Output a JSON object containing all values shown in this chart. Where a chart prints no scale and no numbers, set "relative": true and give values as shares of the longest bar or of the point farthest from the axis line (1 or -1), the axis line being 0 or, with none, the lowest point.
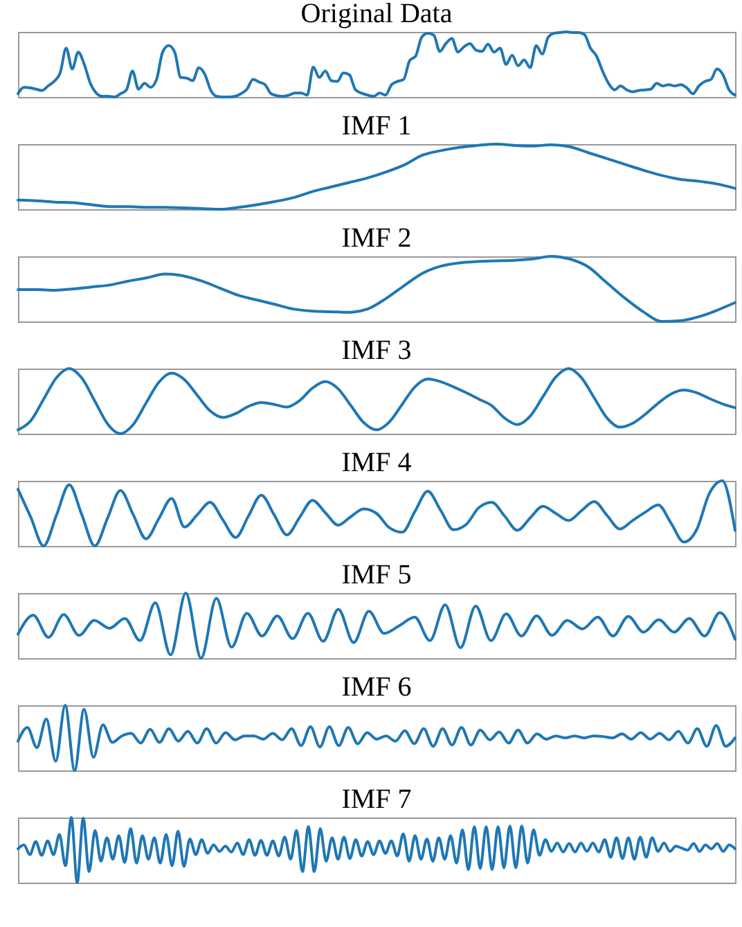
{
  "chart_data": [
    {
      "type": "line",
      "title": "Original Data",
      "relative": true,
      "color": "#1f77b4",
      "categories": [
        null,
        null,
        null,
        null,
        null,
        null,
        null,
        null,
        null,
        null,
        null,
        null,
        null,
        null,
        null,
        null,
        null,
        null,
        null,
        null,
        null,
        null,
        null,
        null,
        null,
        null,
        null,
        null,
        null,
        null,
        null,
        null,
        null,
        null,
        null,
        null,
        null,
        null,
        null,
        null,
        null,
        null,
        null,
        null,
        null,
        null,
        null,
        null,
        null,
        null,
        null,
        null,
        null,
        null,
        null,
        null,
        null,
        null,
        null,
        null,
        null,
        null,
        null,
        null,
        null,
        null,
        null,
        null,
        null,
        null,
        null,
        null,
        null,
        null,
        null,
        null,
        null,
        null,
        null,
        null,
        null,
        null,
        null,
        null,
        null,
        null,
        null,
        null,
        null,
        null,
        null,
        null,
        null,
        null,
        null,
        null,
        null,
        null,
        null,
        null,
        null,
        null,
        null,
        null,
        null,
        null,
        null,
        null,
        null,
        null,
        null,
        null,
        null,
        null,
        null,
        null,
        null,
        null,
        null,
        null
      ],
      "values": [
        0.05,
        0.15,
        0.14,
        0.12,
        0.1,
        0.17,
        0.24,
        0.37,
        0.75,
        0.43,
        0.69,
        0.5,
        0.21,
        0.06,
        0.01,
        0.01,
        0,
        0.05,
        0.11,
        0.4,
        0.12,
        0.21,
        0.15,
        0.27,
        0.69,
        0.79,
        0.69,
        0.3,
        0.29,
        0.25,
        0.45,
        0.35,
        0.1,
        0.01,
        0,
        0,
        0.01,
        0.05,
        0.12,
        0.27,
        0.23,
        0.19,
        0.05,
        0.02,
        0.01,
        0.03,
        0.06,
        0.06,
        0.03,
        0.46,
        0.3,
        0.4,
        0.25,
        0.24,
        0.37,
        0.34,
        0.11,
        0.06,
        0.03,
        0.01,
        0.06,
        0.03,
        0.19,
        0.24,
        0.27,
        0.56,
        0.63,
        0.92,
        0.98,
        0.95,
        0.7,
        0.82,
        0.9,
        0.69,
        0.77,
        0.82,
        0.72,
        0.7,
        0.81,
        0.69,
        0.75,
        0.5,
        0.64,
        0.48,
        0.57,
        0.45,
        0.79,
        0.66,
        0.92,
        0.98,
        0.99,
        1,
        0.99,
        0.99,
        0.96,
        0.75,
        0.63,
        0.4,
        0.21,
        0.11,
        0.17,
        0.11,
        0.08,
        0.1,
        0.11,
        0.12,
        0.21,
        0.17,
        0.19,
        0.17,
        0.19,
        0.14,
        0.05,
        0.17,
        0.24,
        0.27,
        0.43,
        0.34,
        0.11,
        0.03
      ]
    },
    {
      "type": "line",
      "title": "IMF 1",
      "relative": true,
      "color": "#1f77b4",
      "categories": [
        null,
        null,
        null,
        null,
        null,
        null,
        null,
        null,
        null,
        null,
        null,
        null,
        null,
        null,
        null,
        null,
        null,
        null,
        null,
        null,
        null,
        null,
        null,
        null,
        null,
        null,
        null,
        null,
        null,
        null,
        null,
        null,
        null,
        null,
        null,
        null,
        null,
        null,
        null,
        null
      ],
      "values": [
        0.14,
        0.13,
        0.11,
        0.1,
        0.07,
        0.04,
        0.04,
        0.03,
        0.03,
        0.02,
        0.01,
        0,
        0.03,
        0.07,
        0.12,
        0.18,
        0.27,
        0.34,
        0.41,
        0.48,
        0.57,
        0.68,
        0.83,
        0.9,
        0.95,
        0.98,
        1,
        0.98,
        0.97,
        0.99,
        0.96,
        0.87,
        0.78,
        0.69,
        0.6,
        0.52,
        0.46,
        0.43,
        0.39,
        0.32
      ]
    },
    {
      "type": "line",
      "title": "IMF 2",
      "relative": true,
      "color": "#1f77b4",
      "categories": [
        null,
        null,
        null,
        null,
        null,
        null,
        null,
        null,
        null,
        null,
        null,
        null,
        null,
        null,
        null,
        null,
        null,
        null,
        null,
        null,
        null,
        null,
        null,
        null,
        null,
        null,
        null,
        null,
        null,
        null,
        null,
        null,
        null,
        null,
        null,
        null,
        null,
        null,
        null,
        null
      ],
      "values": [
        0.49,
        0.49,
        0.48,
        0.5,
        0.53,
        0.56,
        0.62,
        0.67,
        0.73,
        0.7,
        0.62,
        0.51,
        0.4,
        0.33,
        0.26,
        0.19,
        0.16,
        0.15,
        0.14,
        0.19,
        0.35,
        0.55,
        0.74,
        0.85,
        0.9,
        0.92,
        0.93,
        0.94,
        0.96,
        1,
        0.96,
        0.84,
        0.6,
        0.36,
        0.15,
        0,
        0.01,
        0.07,
        0.17,
        0.29
      ]
    },
    {
      "type": "line",
      "title": "IMF 3",
      "relative": true,
      "color": "#1f77b4",
      "categories": [
        null,
        null,
        null,
        null,
        null,
        null,
        null,
        null,
        null,
        null,
        null,
        null,
        null,
        null,
        null,
        null,
        null,
        null,
        null,
        null,
        null,
        null,
        null,
        null,
        null,
        null,
        null,
        null,
        null,
        null,
        null,
        null,
        null,
        null,
        null,
        null,
        null,
        null,
        null,
        null,
        null,
        null,
        null,
        null,
        null,
        null,
        null,
        null,
        null,
        null,
        null,
        null,
        null,
        null,
        null,
        null,
        null
      ],
      "values": [
        0.06,
        0.2,
        0.53,
        0.86,
        1,
        0.85,
        0.5,
        0.15,
        0,
        0.14,
        0.47,
        0.79,
        0.93,
        0.83,
        0.59,
        0.35,
        0.25,
        0.31,
        0.42,
        0.48,
        0.45,
        0.41,
        0.51,
        0.7,
        0.8,
        0.69,
        0.43,
        0.17,
        0.06,
        0.18,
        0.45,
        0.72,
        0.84,
        0.8,
        0.72,
        0.63,
        0.53,
        0.43,
        0.24,
        0.14,
        0.27,
        0.57,
        0.87,
        1,
        0.86,
        0.55,
        0.24,
        0.1,
        0.16,
        0.3,
        0.47,
        0.61,
        0.67,
        0.63,
        0.54,
        0.46,
        0.4
      ]
    },
    {
      "type": "line",
      "title": "IMF 4",
      "relative": true,
      "color": "#1f77b4",
      "categories": [
        null,
        null,
        null,
        null,
        null,
        null,
        null,
        null,
        null,
        null,
        null,
        null,
        null,
        null,
        null,
        null,
        null,
        null,
        null,
        null,
        null,
        null,
        null,
        null,
        null,
        null,
        null,
        null,
        null,
        null,
        null,
        null,
        null,
        null,
        null,
        null,
        null,
        null,
        null,
        null,
        null,
        null,
        null,
        null,
        null,
        null,
        null,
        null,
        null,
        null,
        null,
        null,
        null,
        null,
        null,
        null,
        null
      ],
      "values": [
        0.87,
        0.44,
        0,
        0.47,
        0.94,
        0.47,
        0,
        0.43,
        0.85,
        0.48,
        0.11,
        0.42,
        0.73,
        0.29,
        0.48,
        0.67,
        0.4,
        0.13,
        0.46,
        0.78,
        0.48,
        0.17,
        0.44,
        0.7,
        0.51,
        0.32,
        0.45,
        0.57,
        0.5,
        0.28,
        0.21,
        0.53,
        0.84,
        0.55,
        0.25,
        0.33,
        0.59,
        0.67,
        0.46,
        0.24,
        0.43,
        0.61,
        0.5,
        0.39,
        0.54,
        0.68,
        0.47,
        0.26,
        0.39,
        0.52,
        0.63,
        0.35,
        0.06,
        0.25,
        0.81,
        1,
        0.24
      ]
    },
    {
      "type": "line",
      "title": "IMF 5",
      "relative": true,
      "color": "#1f77b4",
      "categories": [
        null,
        null,
        null,
        null,
        null,
        null,
        null,
        null,
        null,
        null,
        null,
        null,
        null,
        null,
        null,
        null,
        null,
        null,
        null,
        null,
        null,
        null,
        null,
        null,
        null,
        null,
        null,
        null,
        null,
        null,
        null,
        null,
        null,
        null,
        null,
        null,
        null,
        null,
        null,
        null,
        null,
        null,
        null,
        null,
        null,
        null,
        null,
        null
      ],
      "values": [
        0.37,
        0.66,
        0.32,
        0.67,
        0.35,
        0.58,
        0.46,
        0.61,
        0.27,
        0.85,
        0.05,
        1,
        0,
        0.92,
        0.17,
        0.69,
        0.34,
        0.65,
        0.3,
        0.69,
        0.26,
        0.75,
        0.24,
        0.72,
        0.38,
        0.5,
        0.63,
        0.27,
        0.82,
        0.16,
        0.8,
        0.27,
        0.68,
        0.34,
        0.65,
        0.35,
        0.58,
        0.45,
        0.63,
        0.34,
        0.64,
        0.4,
        0.59,
        0.4,
        0.61,
        0.34,
        0.7,
        0.29
      ]
    },
    {
      "type": "line",
      "title": "IMF 6",
      "relative": true,
      "color": "#1f77b4",
      "categories": [
        null,
        null,
        null,
        null,
        null,
        null,
        null,
        null,
        null,
        null,
        null,
        null,
        null,
        null,
        null,
        null,
        null,
        null,
        null,
        null,
        null,
        null,
        null,
        null,
        null,
        null,
        null,
        null,
        null,
        null,
        null,
        null,
        null,
        null,
        null,
        null,
        null,
        null,
        null,
        null,
        null,
        null,
        null,
        null,
        null,
        null,
        null,
        null,
        null,
        null,
        null,
        null,
        null,
        null,
        null,
        null,
        null,
        null,
        null,
        null,
        null,
        null,
        null,
        null,
        null,
        null,
        null,
        null,
        null,
        null,
        null,
        null,
        null,
        null,
        null,
        null,
        null
      ],
      "values": [
        0.45,
        0.66,
        0.35,
        0.79,
        0.14,
        1,
        0,
        0.94,
        0.2,
        0.7,
        0.43,
        0.53,
        0.57,
        0.42,
        0.63,
        0.43,
        0.64,
        0.45,
        0.6,
        0.42,
        0.64,
        0.42,
        0.58,
        0.47,
        0.53,
        0.53,
        0.48,
        0.57,
        0.47,
        0.64,
        0.38,
        0.67,
        0.36,
        0.67,
        0.38,
        0.66,
        0.41,
        0.58,
        0.48,
        0.53,
        0.45,
        0.61,
        0.41,
        0.64,
        0.37,
        0.64,
        0.39,
        0.66,
        0.39,
        0.62,
        0.47,
        0.59,
        0.42,
        0.62,
        0.42,
        0.56,
        0.48,
        0.53,
        0.5,
        0.53,
        0.5,
        0.53,
        0.52,
        0.5,
        0.56,
        0.48,
        0.58,
        0.48,
        0.57,
        0.47,
        0.6,
        0.42,
        0.64,
        0.37,
        0.69,
        0.37,
        0.5
      ]
    },
    {
      "type": "line",
      "title": "IMF 7",
      "relative": true,
      "color": "#1f77b4",
      "categories": [
        null,
        null,
        null,
        null,
        null,
        null,
        null,
        null,
        null,
        null,
        null,
        null,
        null,
        null,
        null,
        null,
        null,
        null,
        null,
        null,
        null,
        null,
        null,
        null,
        null,
        null,
        null,
        null,
        null,
        null,
        null,
        null,
        null,
        null,
        null,
        null,
        null,
        null,
        null,
        null,
        null,
        null,
        null,
        null,
        null,
        null,
        null,
        null,
        null,
        null,
        null,
        null,
        null,
        null,
        null,
        null,
        null,
        null,
        null,
        null,
        null,
        null,
        null,
        null,
        null,
        null,
        null,
        null,
        null,
        null,
        null,
        null,
        null,
        null,
        null,
        null,
        null,
        null,
        null,
        null,
        null,
        null,
        null,
        null,
        null,
        null,
        null,
        null,
        null,
        null,
        null,
        null,
        null,
        null,
        null,
        null,
        null,
        null,
        null,
        null,
        null,
        null,
        null,
        null,
        null,
        null,
        null,
        null,
        null,
        null,
        null,
        null,
        null,
        null,
        null,
        null,
        null,
        null,
        null,
        null,
        null,
        null
      ],
      "values": [
        0.52,
        0.58,
        0.43,
        0.63,
        0.42,
        0.64,
        0.43,
        0.74,
        0.26,
        1,
        0,
        0.99,
        0.17,
        0.8,
        0.33,
        0.69,
        0.36,
        0.72,
        0.31,
        0.83,
        0.3,
        0.72,
        0.36,
        0.69,
        0.3,
        0.74,
        0.26,
        0.79,
        0.25,
        0.67,
        0.43,
        0.66,
        0.45,
        0.58,
        0.48,
        0.56,
        0.47,
        0.61,
        0.43,
        0.66,
        0.42,
        0.65,
        0.42,
        0.64,
        0.41,
        0.7,
        0.36,
        0.8,
        0.17,
        0.86,
        0.17,
        0.83,
        0.33,
        0.69,
        0.36,
        0.7,
        0.37,
        0.66,
        0.41,
        0.63,
        0.43,
        0.64,
        0.45,
        0.64,
        0.41,
        0.75,
        0.33,
        0.72,
        0.36,
        0.67,
        0.33,
        0.69,
        0.36,
        0.72,
        0.3,
        0.81,
        0.2,
        0.86,
        0.22,
        0.86,
        0.2,
        0.86,
        0.23,
        0.87,
        0.23,
        0.87,
        0.3,
        0.81,
        0.42,
        0.66,
        0.48,
        0.61,
        0.47,
        0.6,
        0.47,
        0.61,
        0.48,
        0.61,
        0.47,
        0.66,
        0.39,
        0.69,
        0.37,
        0.69,
        0.36,
        0.7,
        0.39,
        0.69,
        0.48,
        0.61,
        0.48,
        0.56,
        0.53,
        0.5,
        0.6,
        0.48,
        0.58,
        0.52,
        0.6,
        0.48,
        0.58,
        0.52
      ]
    }
  ]
}
